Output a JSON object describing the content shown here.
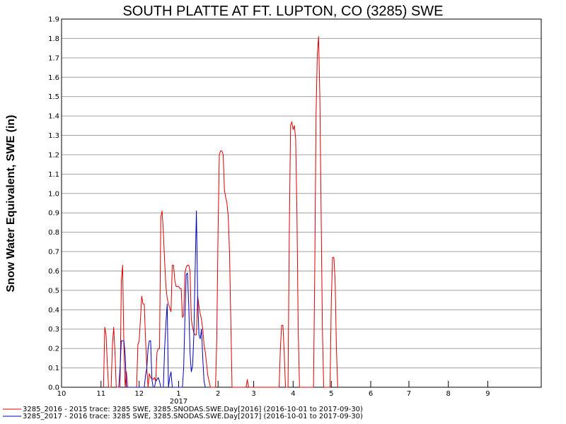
{
  "chart_data": {
    "type": "line",
    "title": "SOUTH PLATTE AT FT. LUPTON, CO (3285) SWE",
    "ylabel": "Snow Water Equivalent, SWE (in)",
    "xlabel": "",
    "ylim": [
      0,
      1.9
    ],
    "xlim": [
      "2016-10-01",
      "2017-10-13"
    ],
    "y_ticks": [
      "0.0",
      "0.1",
      "0.2",
      "0.3",
      "0.4",
      "0.5",
      "0.6",
      "0.7",
      "0.8",
      "0.9",
      "1.0",
      "1.1",
      "1.2",
      "1.3",
      "1.4",
      "1.5",
      "1.6",
      "1.7",
      "1.8",
      "1.9"
    ],
    "x_ticks": [
      {
        "label": "10",
        "date": "2016-10-01"
      },
      {
        "label": "11",
        "date": "2016-11-01"
      },
      {
        "label": "12",
        "date": "2016-12-01"
      },
      {
        "label": "1",
        "date": "2017-01-01"
      },
      {
        "label": "2",
        "date": "2017-02-01"
      },
      {
        "label": "3",
        "date": "2017-03-01"
      },
      {
        "label": "4",
        "date": "2017-04-01"
      },
      {
        "label": "5",
        "date": "2017-05-01"
      },
      {
        "label": "6",
        "date": "2017-06-01"
      },
      {
        "label": "7",
        "date": "2017-07-01"
      },
      {
        "label": "8",
        "date": "2017-08-01"
      },
      {
        "label": "9",
        "date": "2017-09-01"
      }
    ],
    "year_label": {
      "label": "2017",
      "date": "2017-01-01"
    },
    "grid": true,
    "legend_position": "bottom",
    "series": [
      {
        "name": "3285_2016 - 2015 trace: 3285 SWE, 3285.SNODAS.SWE.Day[2016] (2016-10-01 to 2017-09-30)",
        "color": "#dd0000",
        "points": [
          [
            "2016-11-03",
            0
          ],
          [
            "2016-11-04",
            0.31
          ],
          [
            "2016-11-05",
            0.27
          ],
          [
            "2016-11-06",
            0.12
          ],
          [
            "2016-11-07",
            0
          ],
          [
            "2016-11-09",
            0
          ],
          [
            "2016-11-10",
            0.22
          ],
          [
            "2016-11-11",
            0.31
          ],
          [
            "2016-11-12",
            0.18
          ],
          [
            "2016-11-13",
            0
          ],
          [
            "2016-11-16",
            0
          ],
          [
            "2016-11-17",
            0.55
          ],
          [
            "2016-11-18",
            0.63
          ],
          [
            "2016-11-19",
            0.22
          ],
          [
            "2016-11-20",
            0
          ],
          [
            "2016-11-21",
            0.08
          ],
          [
            "2016-11-22",
            0
          ],
          [
            "2016-11-29",
            0
          ],
          [
            "2016-11-30",
            0.22
          ],
          [
            "2016-12-01",
            0.24
          ],
          [
            "2016-12-02",
            0.35
          ],
          [
            "2016-12-03",
            0.47
          ],
          [
            "2016-12-04",
            0.43
          ],
          [
            "2016-12-05",
            0.43
          ],
          [
            "2016-12-06",
            0.25
          ],
          [
            "2016-12-07",
            0.1
          ],
          [
            "2016-12-08",
            0
          ],
          [
            "2016-12-09",
            0.07
          ],
          [
            "2016-12-10",
            0.05
          ],
          [
            "2016-12-12",
            0.04
          ],
          [
            "2016-12-13",
            0.05
          ],
          [
            "2016-12-14",
            0.03
          ],
          [
            "2016-12-15",
            0.18
          ],
          [
            "2016-12-16",
            0.2
          ],
          [
            "2016-12-17",
            0.2
          ],
          [
            "2016-12-18",
            0.88
          ],
          [
            "2016-12-19",
            0.91
          ],
          [
            "2016-12-20",
            0.8
          ],
          [
            "2016-12-21",
            0.65
          ],
          [
            "2016-12-22",
            0.52
          ],
          [
            "2016-12-23",
            0.46
          ],
          [
            "2016-12-24",
            0.43
          ],
          [
            "2016-12-25",
            0.41
          ],
          [
            "2016-12-26",
            0.39
          ],
          [
            "2016-12-27",
            0.63
          ],
          [
            "2016-12-28",
            0.63
          ],
          [
            "2016-12-29",
            0.55
          ],
          [
            "2016-12-30",
            0.52
          ],
          [
            "2016-12-31",
            0.52
          ],
          [
            "2017-01-01",
            0.52
          ],
          [
            "2017-01-02",
            0.51
          ],
          [
            "2017-01-03",
            0.51
          ],
          [
            "2017-01-04",
            0.36
          ],
          [
            "2017-01-05",
            0.37
          ],
          [
            "2017-01-06",
            0.59
          ],
          [
            "2017-01-07",
            0.62
          ],
          [
            "2017-01-08",
            0.63
          ],
          [
            "2017-01-09",
            0.63
          ],
          [
            "2017-01-10",
            0.6
          ],
          [
            "2017-01-11",
            0.35
          ],
          [
            "2017-01-12",
            0.31
          ],
          [
            "2017-01-13",
            0.28
          ],
          [
            "2017-01-14",
            0.27
          ],
          [
            "2017-01-15",
            0.27
          ],
          [
            "2017-01-16",
            0.47
          ],
          [
            "2017-01-17",
            0.42
          ],
          [
            "2017-01-18",
            0.38
          ],
          [
            "2017-01-19",
            0.35
          ],
          [
            "2017-01-20",
            0.3
          ],
          [
            "2017-01-21",
            0.22
          ],
          [
            "2017-01-22",
            0.18
          ],
          [
            "2017-01-23",
            0.12
          ],
          [
            "2017-01-24",
            0.06
          ],
          [
            "2017-01-25",
            0.03
          ],
          [
            "2017-01-26",
            0
          ],
          [
            "2017-01-30",
            0
          ],
          [
            "2017-01-31",
            0.25
          ],
          [
            "2017-02-01",
            0.8
          ],
          [
            "2017-02-02",
            1.2
          ],
          [
            "2017-02-03",
            1.22
          ],
          [
            "2017-02-04",
            1.22
          ],
          [
            "2017-02-05",
            1.2
          ],
          [
            "2017-02-06",
            1.02
          ],
          [
            "2017-02-07",
            0.98
          ],
          [
            "2017-02-08",
            0.95
          ],
          [
            "2017-02-09",
            0.88
          ],
          [
            "2017-02-10",
            0.7
          ],
          [
            "2017-02-11",
            0.35
          ],
          [
            "2017-02-12",
            0
          ],
          [
            "2017-02-23",
            0
          ],
          [
            "2017-02-24",
            0.04
          ],
          [
            "2017-02-25",
            0
          ],
          [
            "2017-03-21",
            0
          ],
          [
            "2017-03-22",
            0.2
          ],
          [
            "2017-03-23",
            0.32
          ],
          [
            "2017-03-24",
            0.32
          ],
          [
            "2017-03-25",
            0.18
          ],
          [
            "2017-03-26",
            0
          ],
          [
            "2017-03-28",
            0
          ],
          [
            "2017-03-29",
            0.8
          ],
          [
            "2017-03-30",
            1.35
          ],
          [
            "2017-03-31",
            1.37
          ],
          [
            "2017-04-01",
            1.33
          ],
          [
            "2017-04-02",
            1.35
          ],
          [
            "2017-04-03",
            1.28
          ],
          [
            "2017-04-04",
            0.9
          ],
          [
            "2017-04-05",
            0.3
          ],
          [
            "2017-04-06",
            0
          ],
          [
            "2017-04-17",
            0
          ],
          [
            "2017-04-18",
            0.6
          ],
          [
            "2017-04-19",
            1.4
          ],
          [
            "2017-04-20",
            1.72
          ],
          [
            "2017-04-21",
            1.81
          ],
          [
            "2017-04-22",
            1.5
          ],
          [
            "2017-04-23",
            0.9
          ],
          [
            "2017-04-24",
            0.3
          ],
          [
            "2017-04-25",
            0
          ],
          [
            "2017-04-30",
            0
          ],
          [
            "2017-05-01",
            0.45
          ],
          [
            "2017-05-02",
            0.67
          ],
          [
            "2017-05-03",
            0.67
          ],
          [
            "2017-05-04",
            0.55
          ],
          [
            "2017-05-05",
            0.2
          ],
          [
            "2017-05-06",
            0
          ]
        ]
      },
      {
        "name": "3285_2017 - 2016 trace: 3285 SWE, 3285.SNODAS.SWE.Day[2017] (2016-10-01 to 2017-09-30)",
        "color": "#0000bb",
        "points": [
          [
            "2016-11-15",
            0
          ],
          [
            "2016-11-16",
            0.1
          ],
          [
            "2016-11-17",
            0.24
          ],
          [
            "2016-11-18",
            0.24
          ],
          [
            "2016-11-19",
            0.24
          ],
          [
            "2016-11-20",
            0.17
          ],
          [
            "2016-11-21",
            0
          ],
          [
            "2016-12-05",
            0
          ],
          [
            "2016-12-06",
            0.06
          ],
          [
            "2016-12-07",
            0.1
          ],
          [
            "2016-12-08",
            0.2
          ],
          [
            "2016-12-09",
            0.24
          ],
          [
            "2016-12-10",
            0.24
          ],
          [
            "2016-12-11",
            0.04
          ],
          [
            "2016-12-12",
            0
          ],
          [
            "2016-12-13",
            0
          ],
          [
            "2016-12-14",
            0.03
          ],
          [
            "2016-12-15",
            0.04
          ],
          [
            "2016-12-16",
            0.05
          ],
          [
            "2016-12-17",
            0.03
          ],
          [
            "2016-12-18",
            0
          ],
          [
            "2016-12-20",
            0
          ],
          [
            "2016-12-21",
            0.2
          ],
          [
            "2016-12-22",
            0.33
          ],
          [
            "2016-12-23",
            0.43
          ],
          [
            "2016-12-24",
            0
          ],
          [
            "2016-12-25",
            0.05
          ],
          [
            "2016-12-26",
            0.08
          ],
          [
            "2016-12-27",
            0
          ],
          [
            "2017-01-04",
            0
          ],
          [
            "2017-01-05",
            0.1
          ],
          [
            "2017-01-06",
            0.36
          ],
          [
            "2017-01-07",
            0.58
          ],
          [
            "2017-01-08",
            0.59
          ],
          [
            "2017-01-09",
            0.42
          ],
          [
            "2017-01-10",
            0.18
          ],
          [
            "2017-01-11",
            0.08
          ],
          [
            "2017-01-12",
            0.11
          ],
          [
            "2017-01-13",
            0.27
          ],
          [
            "2017-01-14",
            0.6
          ],
          [
            "2017-01-15",
            0.91
          ],
          [
            "2017-01-16",
            0.46
          ],
          [
            "2017-01-17",
            0.27
          ],
          [
            "2017-01-18",
            0.25
          ],
          [
            "2017-01-19",
            0.3
          ],
          [
            "2017-01-20",
            0.15
          ],
          [
            "2017-01-21",
            0.03
          ],
          [
            "2017-01-22",
            0
          ]
        ]
      }
    ]
  }
}
